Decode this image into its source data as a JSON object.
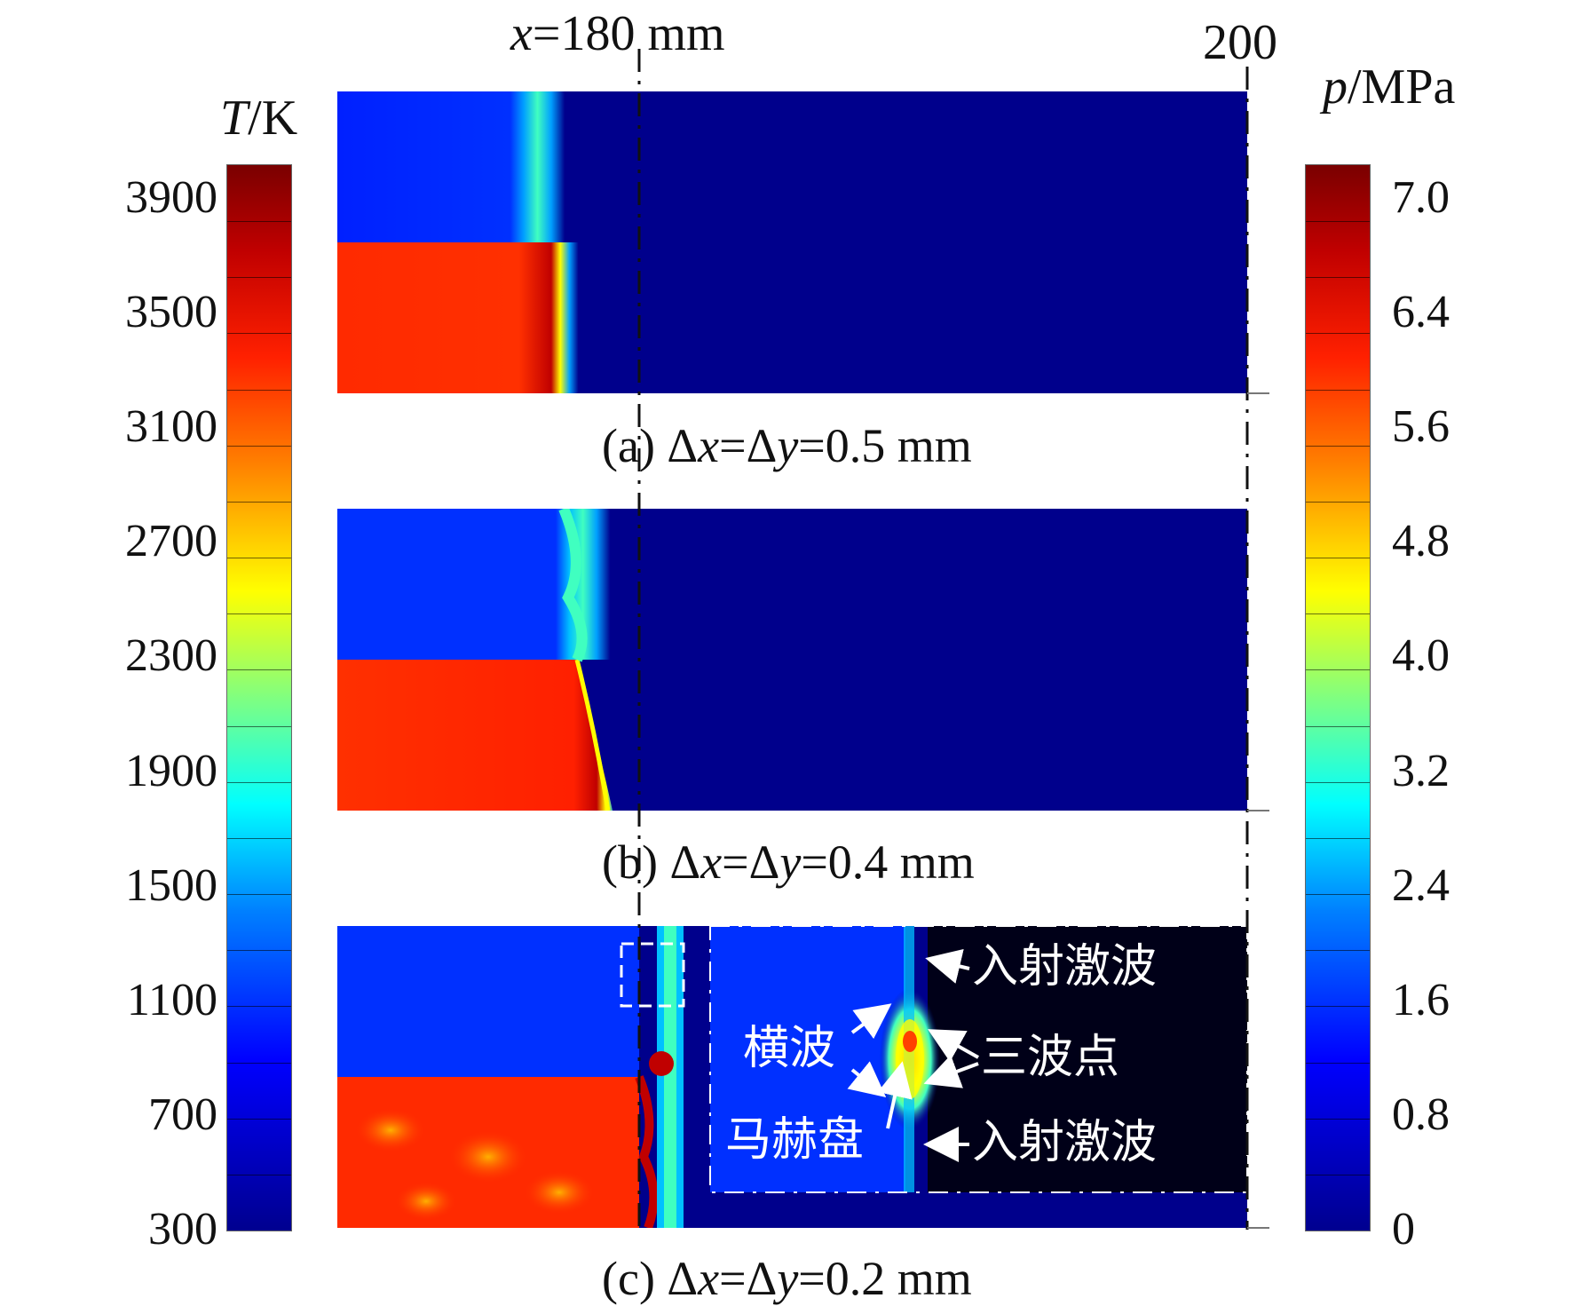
{
  "top_axis": {
    "left_label_var": "x",
    "left_label_rest": "=180 mm",
    "right_label": "200"
  },
  "left_colorbar": {
    "title_var": "T",
    "title_unit": "/K",
    "ticks": [
      "3900",
      "3500",
      "3100",
      "2700",
      "2300",
      "1900",
      "1500",
      "1100",
      "700",
      "300"
    ]
  },
  "right_colorbar": {
    "title_var": "p",
    "title_unit": "/MPa",
    "ticks": [
      "7.0",
      "6.4",
      "5.6",
      "4.8",
      "4.0",
      "3.2",
      "2.4",
      "1.6",
      "0.8",
      "0"
    ]
  },
  "colormap": [
    "#00008f",
    "#0000ff",
    "#0080ff",
    "#00ffff",
    "#80ff80",
    "#ffff00",
    "#ff8000",
    "#ff2000",
    "#c00000",
    "#7a0000"
  ],
  "panels": [
    {
      "prefix": "(a) Δ",
      "x": "x",
      "mid": "=Δ",
      "y": "y",
      "suffix": "=0.5 mm"
    },
    {
      "prefix": "(b) Δ",
      "x": "x",
      "mid": "=Δ",
      "y": "y",
      "suffix": "=0.4 mm"
    },
    {
      "prefix": "(c) Δ",
      "x": "x",
      "mid": "=Δ",
      "y": "y",
      "suffix": "=0.2 mm"
    }
  ],
  "annotations": {
    "incident_shock_top": "入射激波",
    "transverse_wave": "横波",
    "triple_point": "三波点",
    "mach_stem": "马赫盘",
    "incident_shock_bottom": "入射激波"
  }
}
